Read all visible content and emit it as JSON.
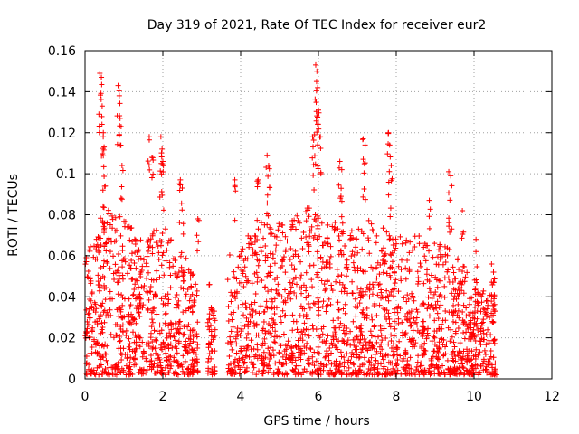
{
  "chart_data": {
    "type": "scatter",
    "title": "Day 319 of 2021, Rate Of TEC Index for receiver eur2",
    "xlabel": "GPS time / hours",
    "ylabel": "ROTI / TECUs",
    "xlim": [
      0,
      12
    ],
    "ylim": [
      0,
      0.16
    ],
    "x_ticks": [
      0,
      2,
      4,
      6,
      8,
      10,
      12
    ],
    "x_tick_labels": [
      "0",
      "2",
      "4",
      "6",
      "8",
      "10",
      "12"
    ],
    "y_ticks": [
      0,
      0.02,
      0.04,
      0.06,
      0.08,
      0.1,
      0.12,
      0.14,
      0.16
    ],
    "y_tick_labels": [
      "0",
      "0.02",
      "0.04",
      "0.06",
      "0.08",
      "0.1",
      "0.12",
      "0.14",
      "0.16"
    ],
    "grid": true,
    "marker": "+",
    "color": "#ff0000",
    "data_gaps_hours": [
      [
        2.9,
        3.15
      ],
      [
        3.35,
        3.65
      ]
    ],
    "series": [
      {
        "name": "ROTI",
        "notable_points": [
          {
            "x": 0.38,
            "y": 0.149
          },
          {
            "x": 0.42,
            "y": 0.147
          },
          {
            "x": 0.44,
            "y": 0.133
          },
          {
            "x": 0.47,
            "y": 0.12
          },
          {
            "x": 0.49,
            "y": 0.113
          },
          {
            "x": 0.52,
            "y": 0.094
          },
          {
            "x": 0.85,
            "y": 0.143
          },
          {
            "x": 0.88,
            "y": 0.138
          },
          {
            "x": 0.9,
            "y": 0.127
          },
          {
            "x": 0.95,
            "y": 0.104
          },
          {
            "x": 1.65,
            "y": 0.118
          },
          {
            "x": 1.72,
            "y": 0.108
          },
          {
            "x": 1.95,
            "y": 0.118
          },
          {
            "x": 1.98,
            "y": 0.112
          },
          {
            "x": 2.0,
            "y": 0.106
          },
          {
            "x": 2.45,
            "y": 0.097
          },
          {
            "x": 2.5,
            "y": 0.093
          },
          {
            "x": 2.9,
            "y": 0.078
          },
          {
            "x": 3.2,
            "y": 0.046
          },
          {
            "x": 3.85,
            "y": 0.097
          },
          {
            "x": 4.45,
            "y": 0.097
          },
          {
            "x": 4.68,
            "y": 0.109
          },
          {
            "x": 4.72,
            "y": 0.104
          },
          {
            "x": 5.85,
            "y": 0.118
          },
          {
            "x": 5.9,
            "y": 0.119
          },
          {
            "x": 5.93,
            "y": 0.153
          },
          {
            "x": 5.96,
            "y": 0.15
          },
          {
            "x": 5.98,
            "y": 0.142
          },
          {
            "x": 6.0,
            "y": 0.131
          },
          {
            "x": 6.05,
            "y": 0.118
          },
          {
            "x": 6.55,
            "y": 0.106
          },
          {
            "x": 6.6,
            "y": 0.102
          },
          {
            "x": 7.15,
            "y": 0.117
          },
          {
            "x": 7.2,
            "y": 0.114
          },
          {
            "x": 7.8,
            "y": 0.12
          },
          {
            "x": 7.83,
            "y": 0.114
          },
          {
            "x": 7.87,
            "y": 0.104
          },
          {
            "x": 8.85,
            "y": 0.087
          },
          {
            "x": 9.35,
            "y": 0.101
          },
          {
            "x": 9.4,
            "y": 0.099
          },
          {
            "x": 9.7,
            "y": 0.082
          },
          {
            "x": 10.05,
            "y": 0.068
          },
          {
            "x": 10.45,
            "y": 0.056
          },
          {
            "x": 10.5,
            "y": 0.052
          },
          {
            "x": 10.55,
            "y": 0.003
          }
        ],
        "bulk_envelope": {
          "x_start": 0.0,
          "x_end": 10.55,
          "y_min": 0.002,
          "typical_upper": [
            {
              "x": 0.0,
              "y": 0.06
            },
            {
              "x": 0.5,
              "y": 0.085
            },
            {
              "x": 1.0,
              "y": 0.08
            },
            {
              "x": 1.5,
              "y": 0.07
            },
            {
              "x": 2.0,
              "y": 0.075
            },
            {
              "x": 2.5,
              "y": 0.065
            },
            {
              "x": 2.9,
              "y": 0.045
            },
            {
              "x": 3.2,
              "y": 0.035
            },
            {
              "x": 3.7,
              "y": 0.06
            },
            {
              "x": 4.2,
              "y": 0.07
            },
            {
              "x": 4.7,
              "y": 0.08
            },
            {
              "x": 5.2,
              "y": 0.075
            },
            {
              "x": 5.7,
              "y": 0.085
            },
            {
              "x": 6.2,
              "y": 0.08
            },
            {
              "x": 6.7,
              "y": 0.075
            },
            {
              "x": 7.2,
              "y": 0.08
            },
            {
              "x": 7.7,
              "y": 0.075
            },
            {
              "x": 8.2,
              "y": 0.07
            },
            {
              "x": 8.7,
              "y": 0.07
            },
            {
              "x": 9.2,
              "y": 0.065
            },
            {
              "x": 9.7,
              "y": 0.06
            },
            {
              "x": 10.2,
              "y": 0.045
            },
            {
              "x": 10.55,
              "y": 0.05
            }
          ]
        }
      }
    ]
  }
}
